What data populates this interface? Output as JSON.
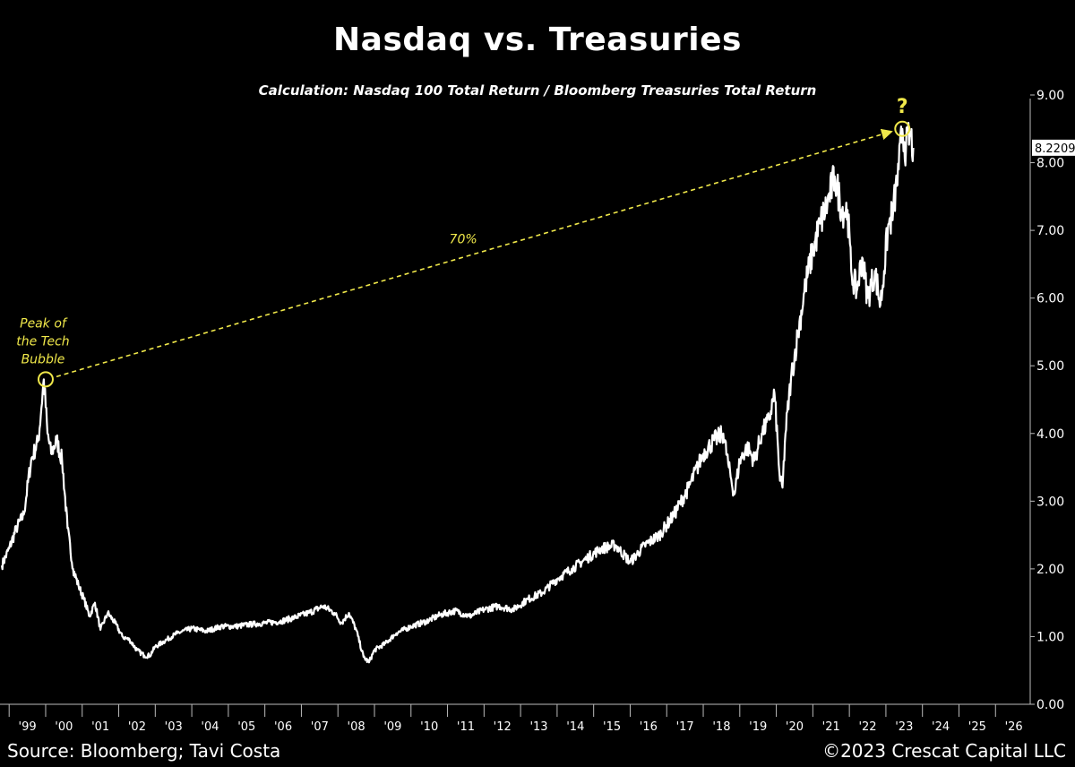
{
  "chart_data": {
    "type": "line",
    "title": "Nasdaq vs. Treasuries",
    "subtitle": "Calculation: Nasdaq 100 Total Return / Bloomberg Treasuries Total Return",
    "xlabel": "",
    "ylabel": "",
    "xlim": [
      1998.75,
      2026.95
    ],
    "ylim": [
      0,
      9
    ],
    "y_ticks": [
      "0.00",
      "1.00",
      "2.00",
      "3.00",
      "4.00",
      "5.00",
      "6.00",
      "7.00",
      "8.00",
      "9.00"
    ],
    "x_tick_labels": [
      "'99",
      "'00",
      "'01",
      "'02",
      "'03",
      "'04",
      "'05",
      "'06",
      "'07",
      "'08",
      "'09",
      "'10",
      "'11",
      "'12",
      "'13",
      "'14",
      "'15",
      "'16",
      "'17",
      "'18",
      "'19",
      "'20",
      "'21",
      "'22",
      "'23",
      "'24",
      "'25",
      "'26"
    ],
    "last_value_label": "8.2209",
    "series": [
      {
        "name": "Nasdaq 100 Total Return / Bloomberg Treasuries Total Return",
        "x": [
          1998.8,
          1999.0,
          1999.2,
          1999.4,
          1999.6,
          1999.8,
          1999.95,
          2000.05,
          2000.15,
          2000.3,
          2000.45,
          2000.6,
          2000.75,
          2000.9,
          2001.05,
          2001.2,
          2001.35,
          2001.5,
          2001.7,
          2001.9,
          2002.1,
          2002.3,
          2002.5,
          2002.7,
          2002.85,
          2003.0,
          2003.3,
          2003.6,
          2004.0,
          2004.4,
          2004.8,
          2005.2,
          2005.6,
          2006.0,
          2006.4,
          2006.8,
          2007.2,
          2007.6,
          2007.9,
          2008.1,
          2008.3,
          2008.5,
          2008.7,
          2008.85,
          2009.0,
          2009.3,
          2009.6,
          2010.0,
          2010.4,
          2010.8,
          2011.2,
          2011.6,
          2012.0,
          2012.4,
          2012.8,
          2013.2,
          2013.6,
          2014.0,
          2014.4,
          2014.8,
          2015.2,
          2015.6,
          2016.0,
          2016.4,
          2016.8,
          2017.2,
          2017.6,
          2018.0,
          2018.3,
          2018.55,
          2018.7,
          2018.85,
          2019.0,
          2019.2,
          2019.4,
          2019.6,
          2019.8,
          2019.95,
          2020.1,
          2020.17,
          2020.25,
          2020.4,
          2020.6,
          2020.8,
          2021.0,
          2021.2,
          2021.4,
          2021.6,
          2021.8,
          2021.95,
          2022.05,
          2022.2,
          2022.35,
          2022.5,
          2022.7,
          2022.85,
          2022.95,
          2023.05,
          2023.2,
          2023.35,
          2023.45,
          2023.55,
          2023.65,
          2023.75
        ],
        "values": [
          2.05,
          2.3,
          2.6,
          2.8,
          3.6,
          3.9,
          4.8,
          4.0,
          3.7,
          3.9,
          3.6,
          2.6,
          2.0,
          1.75,
          1.55,
          1.3,
          1.5,
          1.1,
          1.35,
          1.2,
          1.0,
          0.95,
          0.8,
          0.72,
          0.72,
          0.85,
          0.95,
          1.05,
          1.12,
          1.08,
          1.15,
          1.15,
          1.18,
          1.2,
          1.22,
          1.28,
          1.35,
          1.45,
          1.35,
          1.2,
          1.35,
          1.1,
          0.7,
          0.62,
          0.8,
          0.9,
          1.05,
          1.15,
          1.22,
          1.32,
          1.38,
          1.3,
          1.4,
          1.45,
          1.4,
          1.55,
          1.65,
          1.85,
          2.0,
          2.15,
          2.3,
          2.35,
          2.1,
          2.35,
          2.5,
          2.8,
          3.2,
          3.7,
          3.9,
          4.0,
          3.5,
          3.1,
          3.6,
          3.8,
          3.6,
          4.0,
          4.2,
          4.6,
          3.3,
          3.2,
          4.0,
          4.8,
          5.5,
          6.2,
          6.7,
          7.1,
          7.4,
          7.8,
          7.3,
          7.3,
          6.4,
          6.1,
          6.6,
          6.0,
          6.4,
          5.9,
          6.4,
          7.0,
          7.3,
          7.9,
          8.5,
          8.2,
          8.4,
          8.22
        ]
      }
    ],
    "annotations": {
      "peak_label": "Peak of the Tech Bubble",
      "peak_point": {
        "x": 2000.0,
        "y": 4.8
      },
      "current_point": {
        "x": 2023.45,
        "y": 8.5
      },
      "gain_label": "70%",
      "question_label": "?"
    }
  },
  "footer": {
    "source": "Source: Bloomberg; Tavi Costa",
    "copyright": "©2023 Crescat Capital LLC"
  },
  "colors": {
    "background": "#000000",
    "line": "#ffffff",
    "annotation": "#f0e84a",
    "axis": "#bbbbbb",
    "value_label_bg": "#ffffff",
    "value_label_text": "#000000"
  }
}
